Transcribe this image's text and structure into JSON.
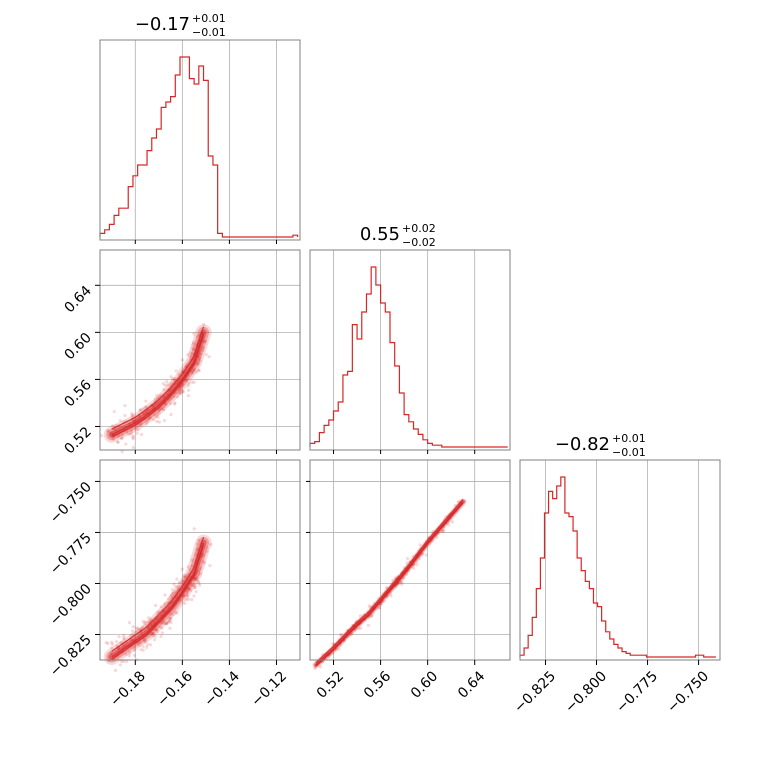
{
  "chart_data": {
    "type": "corner",
    "color": "#d62728",
    "parameters": [
      {
        "title": "−0.17",
        "err_plus": "+0.01",
        "err_minus": "−0.01",
        "range": [
          -0.195,
          -0.11
        ],
        "ticks": [
          -0.18,
          -0.16,
          -0.14,
          -0.12
        ],
        "tick_labels": [
          "−0.18",
          "−0.16",
          "−0.14",
          "−0.12"
        ],
        "histogram": [
          {
            "x": -0.195,
            "y": 2
          },
          {
            "x": -0.193,
            "y": 4
          },
          {
            "x": -0.191,
            "y": 7
          },
          {
            "x": -0.189,
            "y": 12
          },
          {
            "x": -0.187,
            "y": 16
          },
          {
            "x": -0.185,
            "y": 16
          },
          {
            "x": -0.183,
            "y": 28
          },
          {
            "x": -0.181,
            "y": 34
          },
          {
            "x": -0.179,
            "y": 40
          },
          {
            "x": -0.177,
            "y": 40
          },
          {
            "x": -0.175,
            "y": 48
          },
          {
            "x": -0.173,
            "y": 55
          },
          {
            "x": -0.171,
            "y": 60
          },
          {
            "x": -0.169,
            "y": 72
          },
          {
            "x": -0.167,
            "y": 75
          },
          {
            "x": -0.165,
            "y": 78
          },
          {
            "x": -0.163,
            "y": 90
          },
          {
            "x": -0.161,
            "y": 100
          },
          {
            "x": -0.159,
            "y": 100
          },
          {
            "x": -0.157,
            "y": 88
          },
          {
            "x": -0.155,
            "y": 85
          },
          {
            "x": -0.153,
            "y": 95
          },
          {
            "x": -0.151,
            "y": 87
          },
          {
            "x": -0.149,
            "y": 45
          },
          {
            "x": -0.147,
            "y": 40
          },
          {
            "x": -0.145,
            "y": 2
          },
          {
            "x": -0.143,
            "y": 0
          },
          {
            "x": -0.141,
            "y": 0
          },
          {
            "x": -0.139,
            "y": 0
          },
          {
            "x": -0.137,
            "y": 0
          },
          {
            "x": -0.135,
            "y": 0
          },
          {
            "x": -0.133,
            "y": 0
          },
          {
            "x": -0.131,
            "y": 0
          },
          {
            "x": -0.129,
            "y": 0
          },
          {
            "x": -0.127,
            "y": 0
          },
          {
            "x": -0.125,
            "y": 0
          },
          {
            "x": -0.123,
            "y": 0
          },
          {
            "x": -0.121,
            "y": 0
          },
          {
            "x": -0.119,
            "y": 0
          },
          {
            "x": -0.117,
            "y": 0
          },
          {
            "x": -0.115,
            "y": 0
          },
          {
            "x": -0.113,
            "y": 1
          }
        ]
      },
      {
        "title": "0.55",
        "err_plus": "+0.02",
        "err_minus": "−0.02",
        "range": [
          0.5,
          0.67
        ],
        "ticks": [
          0.52,
          0.56,
          0.6,
          0.64
        ],
        "tick_labels": [
          "0.52",
          "0.56",
          "0.60",
          "0.64"
        ],
        "histogram": [
          {
            "x": 0.5,
            "y": 2
          },
          {
            "x": 0.504,
            "y": 3
          },
          {
            "x": 0.508,
            "y": 8
          },
          {
            "x": 0.512,
            "y": 12
          },
          {
            "x": 0.516,
            "y": 15
          },
          {
            "x": 0.52,
            "y": 20
          },
          {
            "x": 0.524,
            "y": 25
          },
          {
            "x": 0.528,
            "y": 40
          },
          {
            "x": 0.532,
            "y": 42
          },
          {
            "x": 0.536,
            "y": 68
          },
          {
            "x": 0.54,
            "y": 60
          },
          {
            "x": 0.544,
            "y": 75
          },
          {
            "x": 0.548,
            "y": 85
          },
          {
            "x": 0.552,
            "y": 100
          },
          {
            "x": 0.556,
            "y": 90
          },
          {
            "x": 0.56,
            "y": 80
          },
          {
            "x": 0.564,
            "y": 75
          },
          {
            "x": 0.568,
            "y": 58
          },
          {
            "x": 0.572,
            "y": 45
          },
          {
            "x": 0.576,
            "y": 30
          },
          {
            "x": 0.58,
            "y": 18
          },
          {
            "x": 0.584,
            "y": 14
          },
          {
            "x": 0.588,
            "y": 10
          },
          {
            "x": 0.592,
            "y": 7
          },
          {
            "x": 0.596,
            "y": 4
          },
          {
            "x": 0.6,
            "y": 2
          },
          {
            "x": 0.604,
            "y": 1
          },
          {
            "x": 0.608,
            "y": 1
          },
          {
            "x": 0.612,
            "y": 0
          },
          {
            "x": 0.616,
            "y": 0
          },
          {
            "x": 0.62,
            "y": 0
          },
          {
            "x": 0.624,
            "y": 0
          },
          {
            "x": 0.628,
            "y": 0
          },
          {
            "x": 0.632,
            "y": 0
          },
          {
            "x": 0.636,
            "y": 0
          },
          {
            "x": 0.64,
            "y": 0
          },
          {
            "x": 0.644,
            "y": 0
          },
          {
            "x": 0.648,
            "y": 0
          },
          {
            "x": 0.652,
            "y": 0
          },
          {
            "x": 0.656,
            "y": 0
          },
          {
            "x": 0.66,
            "y": 0
          },
          {
            "x": 0.664,
            "y": 0
          }
        ]
      },
      {
        "title": "−0.82",
        "err_plus": "+0.01",
        "err_minus": "−0.01",
        "range": [
          -0.8375,
          -0.7395
        ],
        "ticks": [
          -0.825,
          -0.8,
          -0.775,
          -0.75
        ],
        "tick_labels": [
          "−0.825",
          "−0.800",
          "−0.775",
          "−0.750"
        ],
        "histogram": [
          {
            "x": -0.8375,
            "y": 1
          },
          {
            "x": -0.8355,
            "y": 5
          },
          {
            "x": -0.8335,
            "y": 12
          },
          {
            "x": -0.8315,
            "y": 22
          },
          {
            "x": -0.8295,
            "y": 38
          },
          {
            "x": -0.8275,
            "y": 55
          },
          {
            "x": -0.8255,
            "y": 80
          },
          {
            "x": -0.8235,
            "y": 92
          },
          {
            "x": -0.8215,
            "y": 88
          },
          {
            "x": -0.8195,
            "y": 95
          },
          {
            "x": -0.8175,
            "y": 100
          },
          {
            "x": -0.8155,
            "y": 80
          },
          {
            "x": -0.8135,
            "y": 78
          },
          {
            "x": -0.8115,
            "y": 70
          },
          {
            "x": -0.8095,
            "y": 55
          },
          {
            "x": -0.8075,
            "y": 48
          },
          {
            "x": -0.8055,
            "y": 42
          },
          {
            "x": -0.8035,
            "y": 38
          },
          {
            "x": -0.8015,
            "y": 30
          },
          {
            "x": -0.7995,
            "y": 28
          },
          {
            "x": -0.7975,
            "y": 20
          },
          {
            "x": -0.7955,
            "y": 14
          },
          {
            "x": -0.7935,
            "y": 10
          },
          {
            "x": -0.7915,
            "y": 7
          },
          {
            "x": -0.7895,
            "y": 5
          },
          {
            "x": -0.7875,
            "y": 3
          },
          {
            "x": -0.7855,
            "y": 2
          },
          {
            "x": -0.7835,
            "y": 1
          },
          {
            "x": -0.7815,
            "y": 1
          },
          {
            "x": -0.7795,
            "y": 1
          },
          {
            "x": -0.7775,
            "y": 1
          },
          {
            "x": -0.7755,
            "y": 0
          },
          {
            "x": -0.7735,
            "y": 0
          },
          {
            "x": -0.7715,
            "y": 0
          },
          {
            "x": -0.7695,
            "y": 0
          },
          {
            "x": -0.7675,
            "y": 0
          },
          {
            "x": -0.7655,
            "y": 0
          },
          {
            "x": -0.7635,
            "y": 0
          },
          {
            "x": -0.7615,
            "y": 0
          },
          {
            "x": -0.7595,
            "y": 0
          },
          {
            "x": -0.7575,
            "y": 0
          },
          {
            "x": -0.7555,
            "y": 0
          },
          {
            "x": -0.7535,
            "y": 0
          },
          {
            "x": -0.7515,
            "y": 1
          },
          {
            "x": -0.7495,
            "y": 1
          },
          {
            "x": -0.7475,
            "y": 0
          },
          {
            "x": -0.7455,
            "y": 0
          },
          {
            "x": -0.7435,
            "y": 0
          }
        ]
      }
    ],
    "pair_ridges": [
      {
        "row": 1,
        "col": 0,
        "ridge": [
          {
            "x": -0.19,
            "y": 0.513
          },
          {
            "x": -0.185,
            "y": 0.518
          },
          {
            "x": -0.18,
            "y": 0.523
          },
          {
            "x": -0.175,
            "y": 0.53
          },
          {
            "x": -0.17,
            "y": 0.538
          },
          {
            "x": -0.165,
            "y": 0.548
          },
          {
            "x": -0.16,
            "y": 0.56
          },
          {
            "x": -0.155,
            "y": 0.575
          },
          {
            "x": -0.151,
            "y": 0.6
          }
        ]
      },
      {
        "row": 2,
        "col": 0,
        "ridge": [
          {
            "x": -0.19,
            "y": -0.836
          },
          {
            "x": -0.185,
            "y": -0.832
          },
          {
            "x": -0.18,
            "y": -0.828
          },
          {
            "x": -0.175,
            "y": -0.824
          },
          {
            "x": -0.17,
            "y": -0.818
          },
          {
            "x": -0.165,
            "y": -0.812
          },
          {
            "x": -0.16,
            "y": -0.804
          },
          {
            "x": -0.155,
            "y": -0.795
          },
          {
            "x": -0.151,
            "y": -0.78
          }
        ]
      },
      {
        "row": 2,
        "col": 1,
        "ridge": [
          {
            "x": 0.505,
            "y": -0.84
          },
          {
            "x": 0.52,
            "y": -0.832
          },
          {
            "x": 0.535,
            "y": -0.823
          },
          {
            "x": 0.55,
            "y": -0.815
          },
          {
            "x": 0.565,
            "y": -0.805
          },
          {
            "x": 0.58,
            "y": -0.795
          },
          {
            "x": 0.6,
            "y": -0.78
          },
          {
            "x": 0.63,
            "y": -0.76
          }
        ]
      }
    ]
  }
}
